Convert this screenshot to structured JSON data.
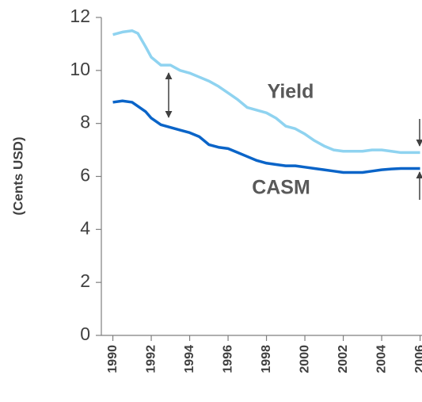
{
  "chart_data": {
    "type": "line",
    "y_label": "(Cents USD)",
    "annotations": [
      "Yield",
      "CASM"
    ],
    "xlim": [
      1989.4,
      2006.1
    ],
    "xticks": [
      {
        "value": 1990,
        "label": "1990"
      },
      {
        "value": 1992,
        "label": "1992"
      },
      {
        "value": 1994,
        "label": "1994"
      },
      {
        "value": 1996,
        "label": "1996"
      },
      {
        "value": 1998,
        "label": "1998"
      },
      {
        "value": 2000,
        "label": "2000"
      },
      {
        "value": 2002,
        "label": "2002"
      },
      {
        "value": 2004,
        "label": "2004"
      },
      {
        "value": 2006,
        "label": "2006"
      }
    ],
    "ylim": [
      0,
      12
    ],
    "yticks": [
      0,
      2,
      4,
      6,
      8,
      10,
      12
    ],
    "grid": false,
    "x": [
      1990,
      1990.5,
      1991,
      1991.3,
      1991.7,
      1992,
      1992.5,
      1993,
      1993.5,
      1994,
      1994.5,
      1995,
      1995.5,
      1996,
      1996.5,
      1997,
      1997.5,
      1998,
      1998.5,
      1999,
      1999.5,
      2000,
      2000.5,
      2001,
      2001.5,
      2002,
      2003,
      2003.5,
      2004,
      2004.5,
      2005,
      2006
    ],
    "series": [
      {
        "name": "Yield",
        "color": "#8fd3f0",
        "values": [
          11.35,
          11.45,
          11.5,
          11.4,
          10.9,
          10.5,
          10.2,
          10.2,
          10.0,
          9.9,
          9.75,
          9.6,
          9.4,
          9.15,
          8.9,
          8.6,
          8.5,
          8.4,
          8.2,
          7.9,
          7.8,
          7.6,
          7.35,
          7.15,
          7.0,
          6.95,
          6.95,
          7.0,
          7.0,
          6.95,
          6.9,
          6.9
        ]
      },
      {
        "name": "CASM",
        "color": "#0a64c8",
        "values": [
          8.8,
          8.85,
          8.8,
          8.65,
          8.45,
          8.2,
          7.95,
          7.85,
          7.75,
          7.65,
          7.5,
          7.2,
          7.1,
          7.05,
          6.9,
          6.75,
          6.6,
          6.5,
          6.45,
          6.4,
          6.4,
          6.35,
          6.3,
          6.25,
          6.2,
          6.15,
          6.15,
          6.2,
          6.25,
          6.28,
          6.3,
          6.3
        ]
      }
    ]
  }
}
